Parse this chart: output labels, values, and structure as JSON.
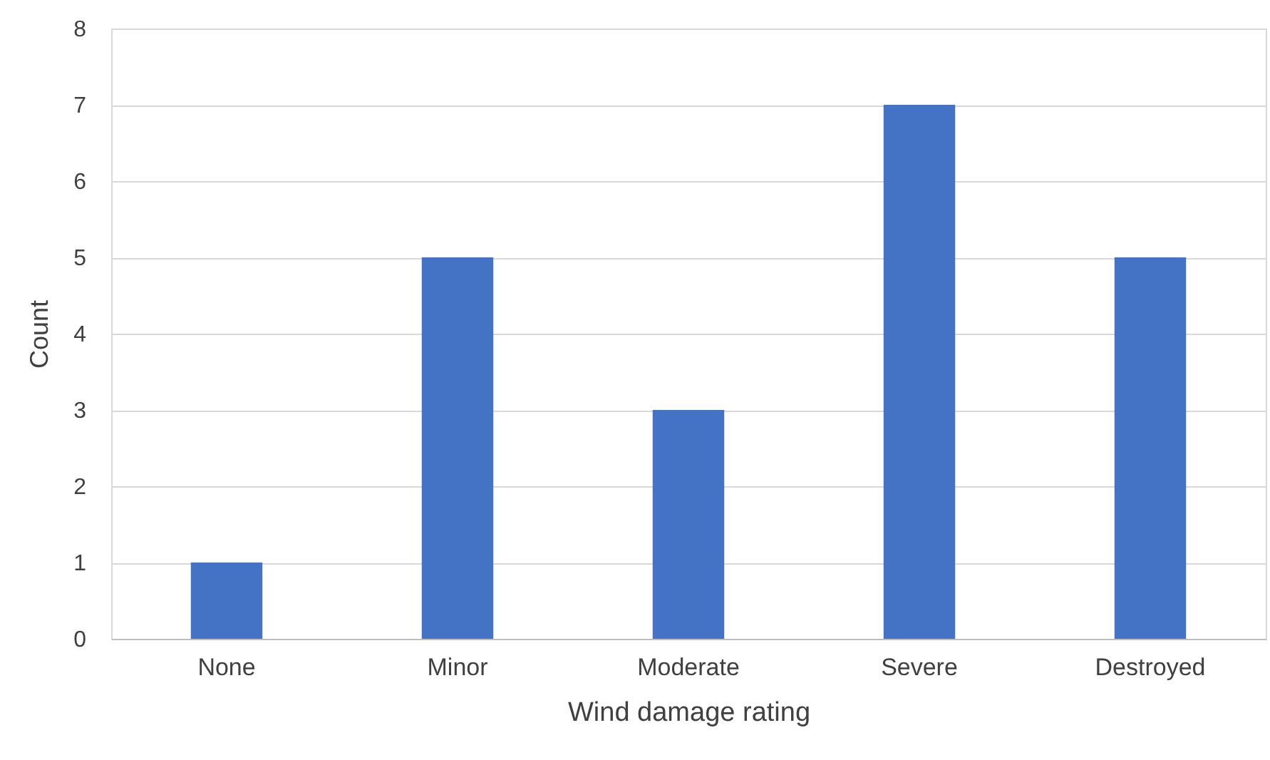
{
  "chart_data": {
    "type": "bar",
    "xlabel": "Wind damage rating",
    "ylabel": "Count",
    "categories": [
      "None",
      "Minor",
      "Moderate",
      "Severe",
      "Destroyed"
    ],
    "values": [
      1,
      5,
      3,
      7,
      5
    ],
    "color": "#4472c4",
    "ylim": [
      0,
      8
    ],
    "yticks": [
      0,
      1,
      2,
      3,
      4,
      5,
      6,
      7,
      8
    ],
    "grid": "y"
  }
}
